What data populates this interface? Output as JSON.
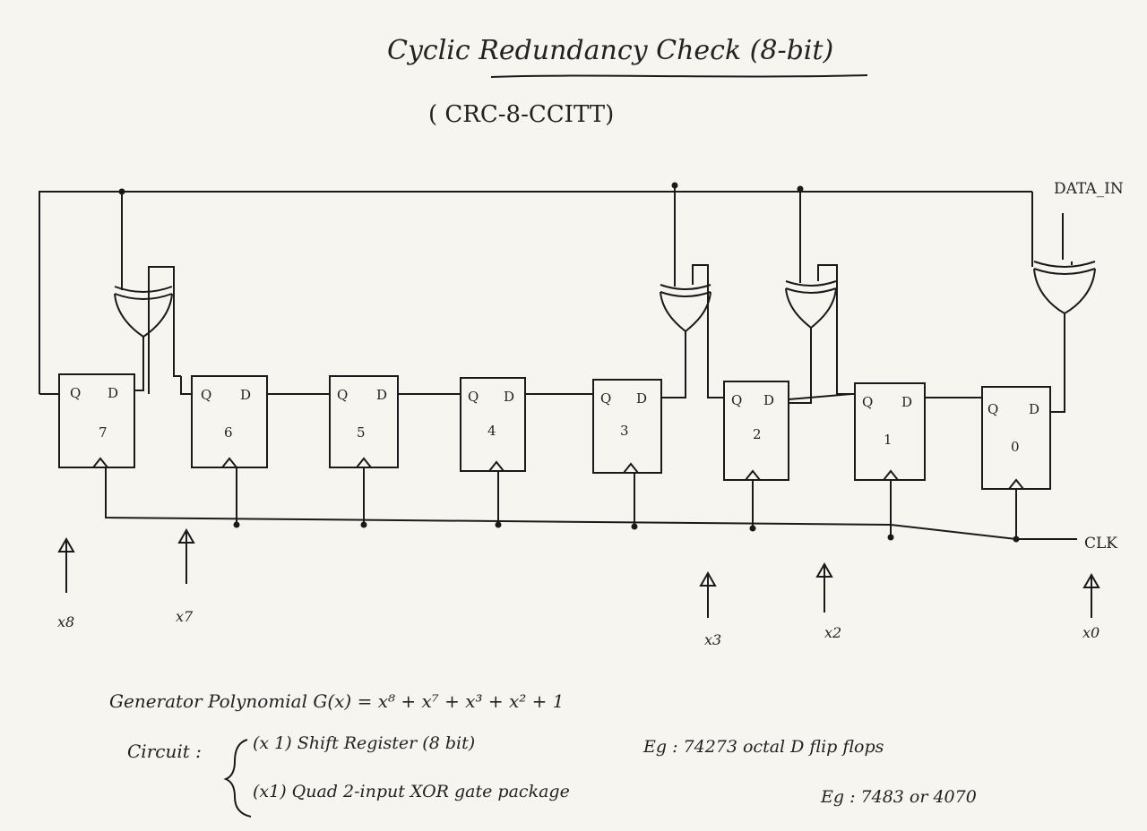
{
  "title": "Cyclic Redundancy Check (8-bit)",
  "subtitle": "( CRC-8-CCITT)",
  "inputs": {
    "data_in": "DATA_IN",
    "clock": "CLK"
  },
  "flip_flops": [
    {
      "q": "Q",
      "d": "D",
      "num": "7"
    },
    {
      "q": "Q",
      "d": "D",
      "num": "6"
    },
    {
      "q": "Q",
      "d": "D",
      "num": "5"
    },
    {
      "q": "Q",
      "d": "D",
      "num": "4"
    },
    {
      "q": "Q",
      "d": "D",
      "num": "3"
    },
    {
      "q": "Q",
      "d": "D",
      "num": "2"
    },
    {
      "q": "Q",
      "d": "D",
      "num": "1"
    },
    {
      "q": "Q",
      "d": "D",
      "num": "0"
    }
  ],
  "taps": [
    "x8",
    "x7",
    "x3",
    "x2",
    "x0"
  ],
  "notes": {
    "polynomial": "Generator Polynomial G(x) = x⁸ + x⁷ + x³ + x² + 1",
    "circuit_label": "Circuit :",
    "component_1": "(x 1) Shift Register (8 bit)",
    "component_1_eg": "Eg : 74273 octal D flip flops",
    "component_2": "(x1) Quad 2-input XOR gate package",
    "component_2_eg": "Eg : 7483 or 4070"
  }
}
